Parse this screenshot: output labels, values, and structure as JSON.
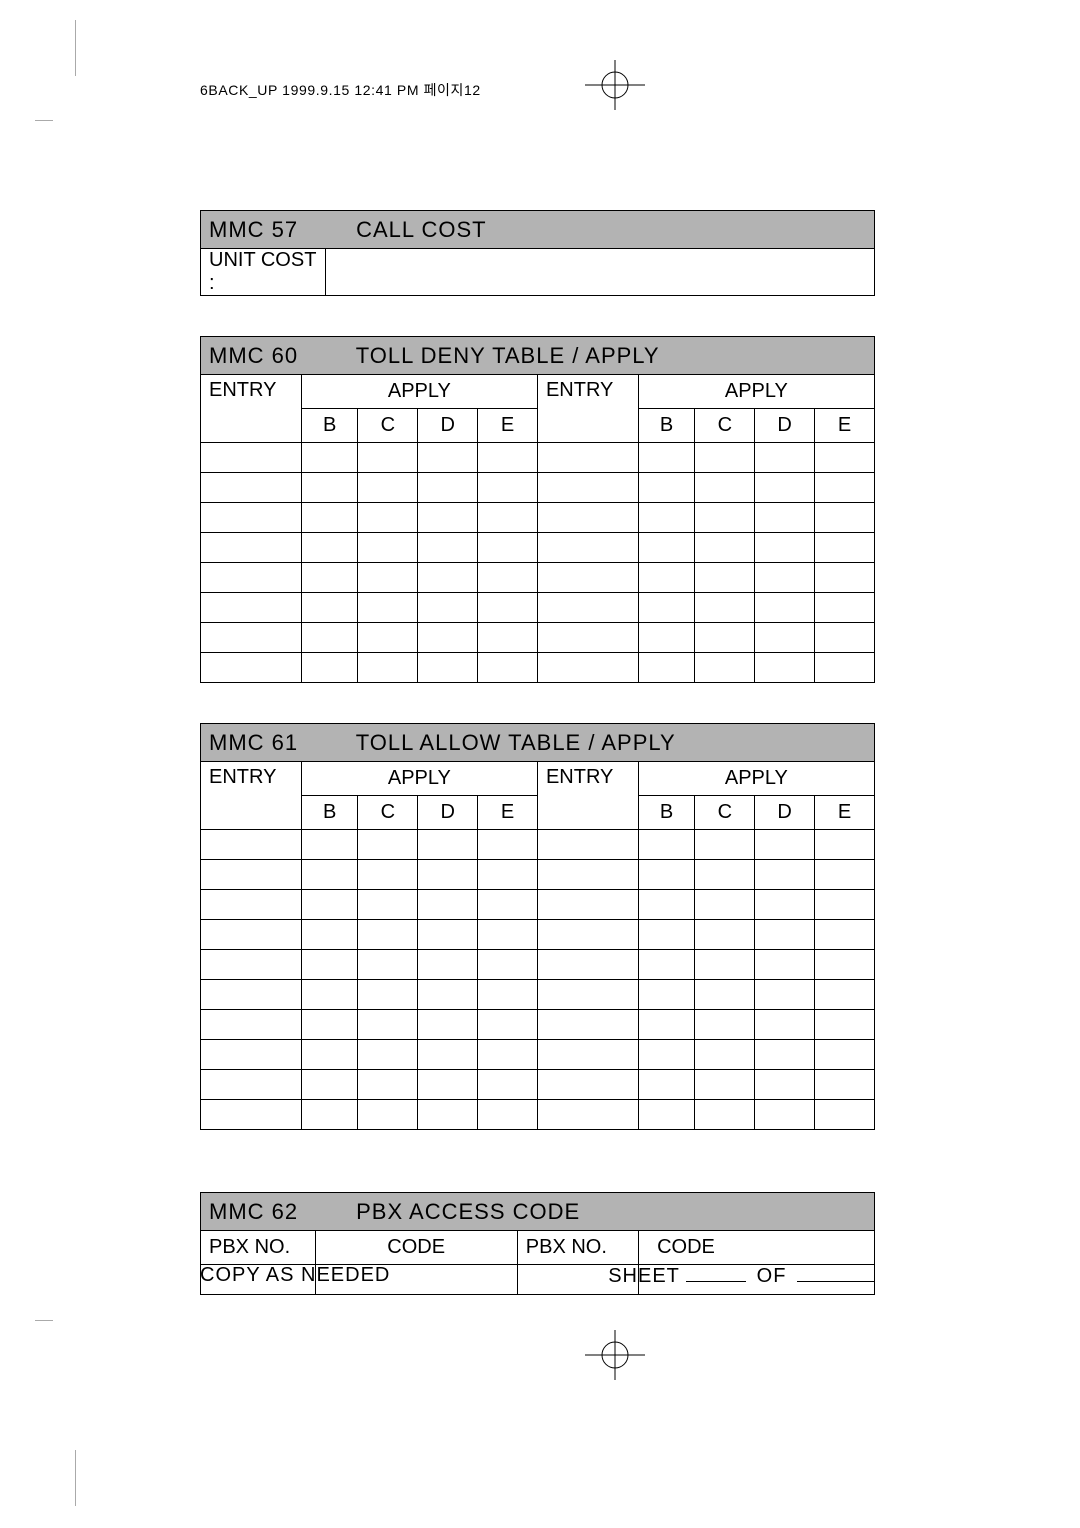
{
  "colors": {
    "header_bg": "#b3b3b3",
    "border": "#000000",
    "text": "#000000",
    "background": "#ffffff",
    "crop": "#aaaaaa"
  },
  "header_line": "6BACK_UP  1999.9.15 12:41 PM  페이지12",
  "mmc57": {
    "code": "MMC 57",
    "title": "CALL COST",
    "row_label": "UNIT COST   :",
    "col_widths_pct": [
      18.5,
      81.5
    ]
  },
  "mmc60": {
    "code": "MMC 60",
    "title": "TOLL DENY TABLE / APPLY",
    "entry_label": "ENTRY",
    "apply_label": "APPLY",
    "apply_cols": [
      "B",
      "C",
      "D",
      "E"
    ],
    "blank_rows": 8,
    "col_widths_pct": [
      12.7,
      7.2,
      7.2,
      7.2,
      7.2,
      12.7,
      7.2,
      7.2,
      7.2,
      7.2
    ]
  },
  "mmc61": {
    "code": "MMC 61",
    "title": "TOLL ALLOW TABLE / APPLY",
    "entry_label": "ENTRY",
    "apply_label": "APPLY",
    "apply_cols": [
      "B",
      "C",
      "D",
      "E"
    ],
    "blank_rows": 10,
    "col_widths_pct": [
      12.7,
      7.2,
      7.2,
      7.2,
      7.2,
      12.7,
      7.2,
      7.2,
      7.2,
      7.2
    ]
  },
  "mmc62": {
    "code": "MMC 62",
    "title": "PBX ACCESS CODE",
    "headers": [
      "PBX NO.",
      "CODE",
      "PBX NO.",
      "CODE"
    ],
    "blank_rows": 1,
    "col_widths_pct": [
      17,
      30,
      18,
      35
    ]
  },
  "footer": {
    "left": "COPY AS NEEDED",
    "sheet": "SHEET",
    "of": "OF"
  }
}
